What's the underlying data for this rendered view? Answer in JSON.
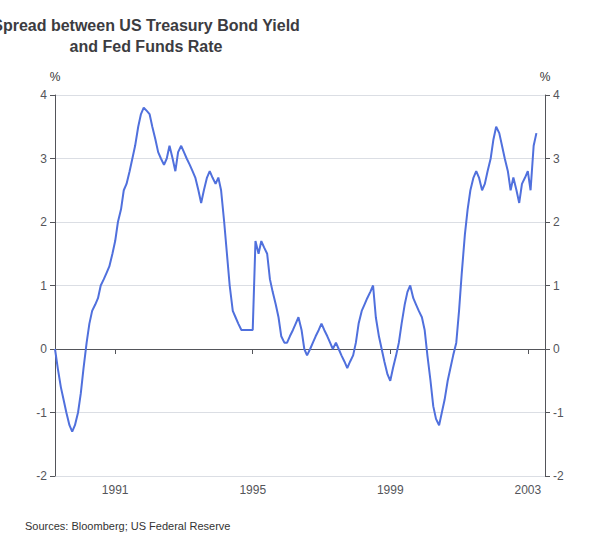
{
  "chart_data": {
    "type": "line",
    "title": "Spread between US Treasury Bond Yield\nand Fed Funds Rate",
    "ylabel": "%",
    "y2label": "%",
    "source": "Sources: Bloomberg; US Federal Reserve",
    "xlim": [
      1989.25,
      2003.5
    ],
    "xticks": [
      1991,
      1995,
      1999,
      2003
    ],
    "ylim": [
      -2,
      4
    ],
    "yticks": [
      -2,
      -1,
      0,
      1,
      2,
      3,
      4
    ],
    "y2lim": [
      -2,
      4
    ],
    "y2ticks": [
      -2,
      -1,
      0,
      1,
      2,
      3,
      4
    ],
    "grid": true,
    "x": [
      1989.25,
      1989.33,
      1989.42,
      1989.5,
      1989.58,
      1989.67,
      1989.75,
      1989.83,
      1989.92,
      1990.0,
      1990.08,
      1990.17,
      1990.25,
      1990.33,
      1990.42,
      1990.5,
      1990.58,
      1990.67,
      1990.75,
      1990.83,
      1990.92,
      1991.0,
      1991.08,
      1991.17,
      1991.25,
      1991.33,
      1991.42,
      1991.5,
      1991.58,
      1991.67,
      1991.75,
      1991.83,
      1991.92,
      1992.0,
      1992.08,
      1992.17,
      1992.25,
      1992.33,
      1992.42,
      1992.5,
      1992.58,
      1992.67,
      1992.75,
      1992.83,
      1992.92,
      1993.0,
      1993.08,
      1993.17,
      1993.25,
      1993.33,
      1993.42,
      1993.5,
      1993.58,
      1993.67,
      1993.75,
      1993.83,
      1993.92,
      1994.0,
      1994.08,
      1994.17,
      1994.25,
      1994.33,
      1994.42,
      1994.5,
      1994.58,
      1994.67,
      1994.75,
      1994.83,
      1994.92,
      1995.0,
      1995.08,
      1995.17,
      1995.25,
      1995.33,
      1995.42,
      1995.5,
      1995.58,
      1995.67,
      1995.75,
      1995.83,
      1995.92,
      1996.0,
      1996.08,
      1996.17,
      1996.25,
      1996.33,
      1996.42,
      1996.5,
      1996.58,
      1996.67,
      1996.75,
      1996.83,
      1996.92,
      1997.0,
      1997.08,
      1997.17,
      1997.25,
      1997.33,
      1997.42,
      1997.5,
      1997.58,
      1997.67,
      1997.75,
      1997.83,
      1997.92,
      1998.0,
      1998.08,
      1998.17,
      1998.25,
      1998.33,
      1998.42,
      1998.5,
      1998.58,
      1998.67,
      1998.75,
      1998.83,
      1998.92,
      1999.0,
      1999.08,
      1999.17,
      1999.25,
      1999.33,
      1999.42,
      1999.5,
      1999.58,
      1999.67,
      1999.75,
      1999.83,
      1999.92,
      2000.0,
      2000.08,
      2000.17,
      2000.25,
      2000.33,
      2000.42,
      2000.5,
      2000.58,
      2000.67,
      2000.75,
      2000.83,
      2000.92,
      2001.0,
      2001.08,
      2001.17,
      2001.25,
      2001.33,
      2001.42,
      2001.5,
      2001.58,
      2001.67,
      2001.75,
      2001.83,
      2001.92,
      2002.0,
      2002.08,
      2002.17,
      2002.25,
      2002.33,
      2002.42,
      2002.5,
      2002.58,
      2002.67,
      2002.75,
      2002.83,
      2002.92,
      2003.0,
      2003.08,
      2003.17,
      2003.25
    ],
    "values": [
      0.0,
      -0.3,
      -0.6,
      -0.8,
      -1.0,
      -1.2,
      -1.3,
      -1.2,
      -1.0,
      -0.7,
      -0.3,
      0.1,
      0.4,
      0.6,
      0.7,
      0.8,
      1.0,
      1.1,
      1.2,
      1.3,
      1.5,
      1.7,
      2.0,
      2.2,
      2.5,
      2.6,
      2.8,
      3.0,
      3.2,
      3.5,
      3.7,
      3.8,
      3.75,
      3.7,
      3.5,
      3.3,
      3.1,
      3.0,
      2.9,
      3.0,
      3.2,
      3.0,
      2.8,
      3.1,
      3.2,
      3.1,
      3.0,
      2.9,
      2.8,
      2.7,
      2.5,
      2.3,
      2.5,
      2.7,
      2.8,
      2.7,
      2.6,
      2.7,
      2.5,
      2.0,
      1.5,
      1.0,
      0.6,
      0.5,
      0.4,
      0.3,
      0.3,
      0.3,
      0.3,
      0.3,
      1.7,
      1.5,
      1.7,
      1.6,
      1.5,
      1.1,
      0.9,
      0.7,
      0.5,
      0.2,
      0.1,
      0.1,
      0.2,
      0.3,
      0.4,
      0.5,
      0.3,
      0.0,
      -0.1,
      0.0,
      0.1,
      0.2,
      0.3,
      0.4,
      0.3,
      0.2,
      0.1,
      0.0,
      0.1,
      0.0,
      -0.1,
      -0.2,
      -0.3,
      -0.2,
      -0.1,
      0.1,
      0.4,
      0.6,
      0.7,
      0.8,
      0.9,
      1.0,
      0.5,
      0.2,
      0.0,
      -0.2,
      -0.4,
      -0.5,
      -0.3,
      -0.1,
      0.1,
      0.4,
      0.7,
      0.9,
      1.0,
      0.8,
      0.7,
      0.6,
      0.5,
      0.3,
      -0.1,
      -0.5,
      -0.9,
      -1.1,
      -1.2,
      -1.0,
      -0.8,
      -0.5,
      -0.3,
      -0.1,
      0.1,
      0.6,
      1.2,
      1.8,
      2.2,
      2.5,
      2.7,
      2.8,
      2.7,
      2.5,
      2.6,
      2.8,
      3.0,
      3.3,
      3.5,
      3.4,
      3.2,
      3.0,
      2.8,
      2.5,
      2.7,
      2.5,
      2.3,
      2.6,
      2.7,
      2.8,
      2.5,
      3.2,
      3.4
    ]
  }
}
